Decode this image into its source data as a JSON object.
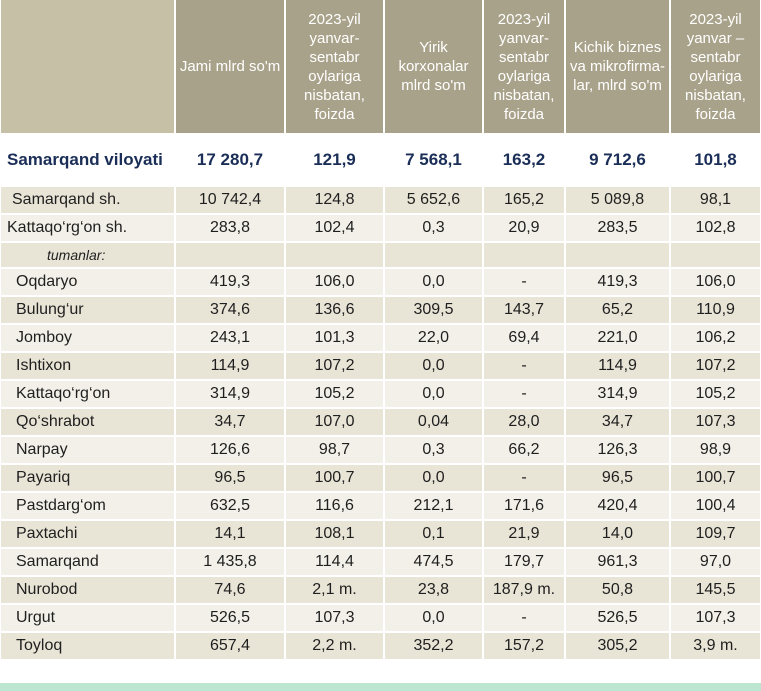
{
  "headers": {
    "col1": "",
    "col2": "Jami mlrd so'm",
    "col3": "2023-yil yanvar-sentabr oylariga nisbatan, foizda",
    "col4": "Yirik korxonalar mlrd so'm",
    "col5": "2023-yil yanvar-sentabr oylariga nisbatan, foizda",
    "col6": "Kichik biznes va mikrofirma-lar, mlrd so'm",
    "col7": "2023-yil yanvar – sentabr oylariga nisbatan, foizda"
  },
  "region": {
    "name": "Samarqand viloyati",
    "values": [
      "17 280,7",
      "121,9",
      "7 568,1",
      "163,2",
      "9 712,6",
      "101,8"
    ]
  },
  "cities": [
    {
      "name": "Samarqand sh.",
      "values": [
        "10 742,4",
        "124,8",
        "5 652,6",
        "165,2",
        "5 089,8",
        "98,1"
      ]
    },
    {
      "name": "Kattaqo‘rg‘on sh.",
      "values": [
        "283,8",
        "102,4",
        "0,3",
        "20,9",
        "283,5",
        "102,8"
      ]
    }
  ],
  "group_label": "tumanlar:",
  "districts": [
    {
      "name": "Oqdaryo",
      "values": [
        "419,3",
        "106,0",
        "0,0",
        "-",
        "419,3",
        "106,0"
      ]
    },
    {
      "name": "Bulung‘ur",
      "values": [
        "374,6",
        "136,6",
        "309,5",
        "143,7",
        "65,2",
        "110,9"
      ]
    },
    {
      "name": "Jomboy",
      "values": [
        "243,1",
        "101,3",
        "22,0",
        "69,4",
        "221,0",
        "106,2"
      ]
    },
    {
      "name": "Ishtixon",
      "values": [
        "114,9",
        "107,2",
        "0,0",
        "-",
        "114,9",
        "107,2"
      ]
    },
    {
      "name": "Kattaqo‘rg‘on",
      "values": [
        "314,9",
        "105,2",
        "0,0",
        "-",
        "314,9",
        "105,2"
      ]
    },
    {
      "name": "Qo‘shrabot",
      "values": [
        "34,7",
        "107,0",
        "0,04",
        "28,0",
        "34,7",
        "107,3"
      ]
    },
    {
      "name": "Narpay",
      "values": [
        "126,6",
        "98,7",
        "0,3",
        "66,2",
        "126,3",
        "98,9"
      ]
    },
    {
      "name": "Payariq",
      "values": [
        "96,5",
        "100,7",
        "0,0",
        "-",
        "96,5",
        "100,7"
      ]
    },
    {
      "name": "Pastdarg‘om",
      "values": [
        "632,5",
        "116,6",
        "212,1",
        "171,6",
        "420,4",
        "100,4"
      ]
    },
    {
      "name": "Paxtachi",
      "values": [
        "14,1",
        "108,1",
        "0,1",
        "21,9",
        "14,0",
        "109,7"
      ]
    },
    {
      "name": "Samarqand",
      "values": [
        "1 435,8",
        "114,4",
        "474,5",
        "179,7",
        "961,3",
        "97,0"
      ]
    },
    {
      "name": "Nurobod",
      "values": [
        "74,6",
        "2,1 m.",
        "23,8",
        "187,9 m.",
        "50,8",
        "145,5"
      ]
    },
    {
      "name": "Urgut",
      "values": [
        "526,5",
        "107,3",
        "0,0",
        "-",
        "526,5",
        "107,3"
      ]
    },
    {
      "name": "Toyloq",
      "values": [
        "657,4",
        "2,2 m.",
        "352,2",
        "157,2",
        "305,2",
        "3,9 m."
      ]
    }
  ],
  "colors": {
    "header_bg": "#a9a28a",
    "row_odd": "#e8e4d6",
    "row_even": "#f2f0e8",
    "region_text": "#1a2e57"
  }
}
